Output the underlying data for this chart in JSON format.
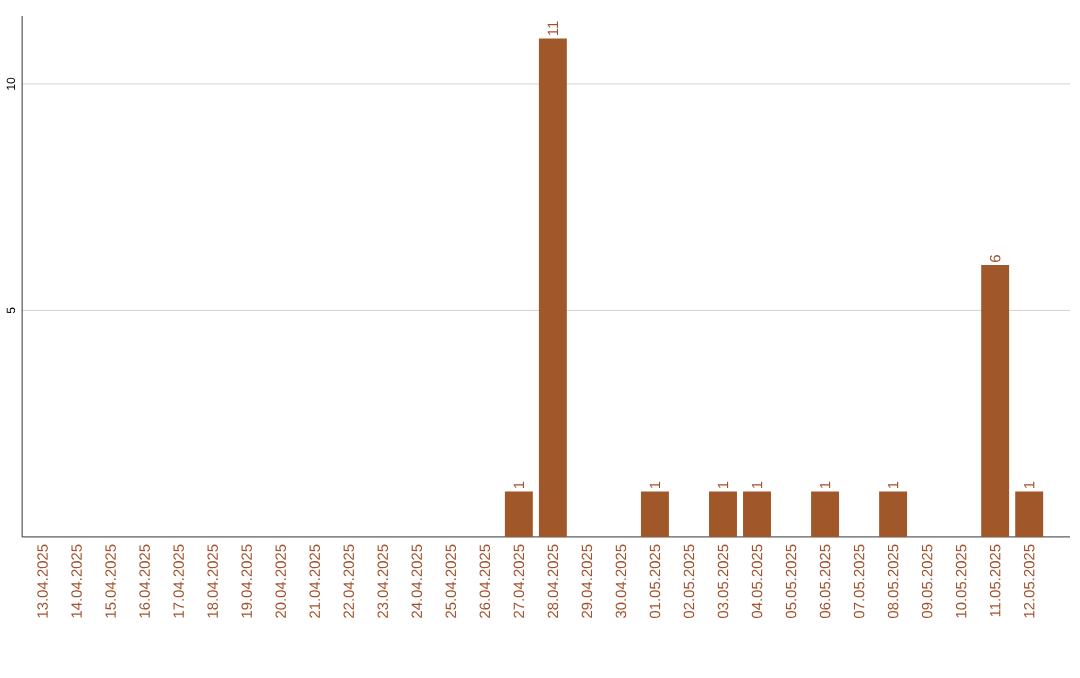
{
  "chart_data": {
    "type": "bar",
    "categories": [
      "13.04.2025",
      "14.04.2025",
      "15.04.2025",
      "16.04.2025",
      "17.04.2025",
      "18.04.2025",
      "19.04.2025",
      "20.04.2025",
      "21.04.2025",
      "22.04.2025",
      "23.04.2025",
      "24.04.2025",
      "25.04.2025",
      "26.04.2025",
      "27.04.2025",
      "28.04.2025",
      "29.04.2025",
      "30.04.2025",
      "01.05.2025",
      "02.05.2025",
      "03.05.2025",
      "04.05.2025",
      "05.05.2025",
      "06.05.2025",
      "07.05.2025",
      "08.05.2025",
      "09.05.2025",
      "10.05.2025",
      "11.05.2025",
      "12.05.2025"
    ],
    "values": [
      0,
      0,
      0,
      0,
      0,
      0,
      0,
      0,
      0,
      0,
      0,
      0,
      0,
      0,
      1,
      11,
      0,
      0,
      1,
      0,
      1,
      1,
      0,
      1,
      0,
      1,
      0,
      0,
      6,
      1
    ],
    "value_labels": [
      null,
      null,
      null,
      null,
      null,
      null,
      null,
      null,
      null,
      null,
      null,
      null,
      null,
      null,
      "1",
      "11",
      null,
      null,
      "1",
      null,
      "1",
      "1",
      null,
      "1",
      null,
      "1",
      null,
      null,
      "6",
      "1"
    ],
    "color": "#a0582a",
    "ylim": [
      0,
      11.5
    ],
    "yticks": [
      5,
      10
    ],
    "grid": "y"
  }
}
